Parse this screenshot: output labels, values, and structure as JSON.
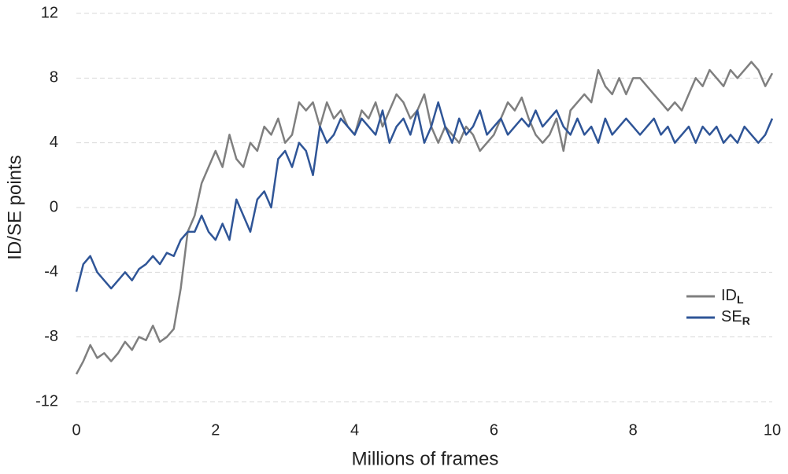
{
  "chart_data": {
    "type": "line",
    "x_label": "Millions of frames",
    "y_label": "ID/SE points",
    "x": [
      0,
      0.1,
      0.2,
      0.3,
      0.4,
      0.5,
      0.6,
      0.7,
      0.8,
      0.9,
      1,
      1.1,
      1.2,
      1.3,
      1.4,
      1.5,
      1.6,
      1.7,
      1.8,
      1.9,
      2,
      2.1,
      2.2,
      2.3,
      2.4,
      2.5,
      2.6,
      2.7,
      2.8,
      2.9,
      3,
      3.1,
      3.2,
      3.3,
      3.4,
      3.5,
      3.6,
      3.7,
      3.8,
      3.9,
      4,
      4.1,
      4.2,
      4.3,
      4.4,
      4.5,
      4.6,
      4.7,
      4.8,
      4.9,
      5,
      5.1,
      5.2,
      5.3,
      5.4,
      5.5,
      5.6,
      5.7,
      5.8,
      5.9,
      6,
      6.1,
      6.2,
      6.3,
      6.4,
      6.5,
      6.6,
      6.7,
      6.8,
      6.9,
      7,
      7.1,
      7.2,
      7.3,
      7.4,
      7.5,
      7.6,
      7.7,
      7.8,
      7.9,
      8,
      8.1,
      8.2,
      8.3,
      8.4,
      8.5,
      8.6,
      8.7,
      8.8,
      8.9,
      9,
      9.1,
      9.2,
      9.3,
      9.4,
      9.5,
      9.6,
      9.7,
      9.8,
      9.9,
      10
    ],
    "series": [
      {
        "name": "ID",
        "subscript": "L",
        "color": "#7f7f7f",
        "values": [
          -10.3,
          -9.5,
          -8.5,
          -9.3,
          -9.0,
          -9.5,
          -9.0,
          -8.3,
          -8.8,
          -8.0,
          -8.2,
          -7.3,
          -8.3,
          -8.0,
          -7.5,
          -5,
          -1.5,
          -0.5,
          1.5,
          2.5,
          3.5,
          2.5,
          4.5,
          3.0,
          2.5,
          4.0,
          3.5,
          5.0,
          4.5,
          5.5,
          4.0,
          4.5,
          6.5,
          6.0,
          6.5,
          5.0,
          6.5,
          5.5,
          6.0,
          5.0,
          4.5,
          6.0,
          5.5,
          6.5,
          5.0,
          6.0,
          7.0,
          6.5,
          5.5,
          6.0,
          7.0,
          5.0,
          4.0,
          5.0,
          4.5,
          4.0,
          5.0,
          4.5,
          3.5,
          4.0,
          4.5,
          5.5,
          6.5,
          6.0,
          6.8,
          5.5,
          4.5,
          4.0,
          4.5,
          5.5,
          3.5,
          6.0,
          6.5,
          7.0,
          6.5,
          8.5,
          7.5,
          7.0,
          8.0,
          7.0,
          8.0,
          8.0,
          7.5,
          7.0,
          6.5,
          6.0,
          6.5,
          6.0,
          7.0,
          8.0,
          7.5,
          8.5,
          8.0,
          7.5,
          8.5,
          8.0,
          8.5,
          9.0,
          8.5,
          7.5,
          8.3
        ]
      },
      {
        "name": "SE",
        "subscript": "R",
        "color": "#2f5597",
        "values": [
          -5.2,
          -3.5,
          -3.0,
          -4.0,
          -4.5,
          -5.0,
          -4.5,
          -4.0,
          -4.5,
          -3.8,
          -3.5,
          -3.0,
          -3.5,
          -2.8,
          -3.0,
          -2.0,
          -1.5,
          -1.5,
          -0.5,
          -1.5,
          -2.0,
          -1.0,
          -2.0,
          0.5,
          -0.5,
          -1.5,
          0.5,
          1.0,
          0.0,
          3.0,
          3.5,
          2.5,
          4.0,
          3.5,
          2.0,
          5.0,
          4.0,
          4.5,
          5.5,
          5.0,
          4.5,
          5.5,
          5.0,
          4.5,
          6.0,
          4.0,
          5.0,
          5.5,
          4.5,
          6.0,
          4.0,
          5.0,
          6.5,
          5.0,
          4.0,
          5.5,
          4.5,
          5.0,
          6.0,
          4.5,
          5.0,
          5.5,
          4.5,
          5.0,
          5.5,
          5.0,
          6.0,
          5.0,
          5.5,
          6.0,
          5.0,
          4.5,
          5.5,
          4.5,
          5.0,
          4.0,
          5.5,
          4.5,
          5.0,
          5.5,
          5.0,
          4.5,
          5.0,
          5.5,
          4.5,
          5.0,
          4.0,
          4.5,
          5.0,
          4.0,
          5.0,
          4.5,
          5.0,
          4.0,
          4.5,
          4.0,
          5.0,
          4.5,
          4.0,
          4.5,
          5.5
        ]
      }
    ],
    "xlim": [
      0,
      10
    ],
    "xticks": [
      0,
      2,
      4,
      6,
      8,
      10
    ],
    "ylim": [
      -12,
      12
    ],
    "yticks": [
      -12,
      -8,
      -4,
      0,
      4,
      8,
      12
    ],
    "grid": true,
    "legend": "right"
  }
}
